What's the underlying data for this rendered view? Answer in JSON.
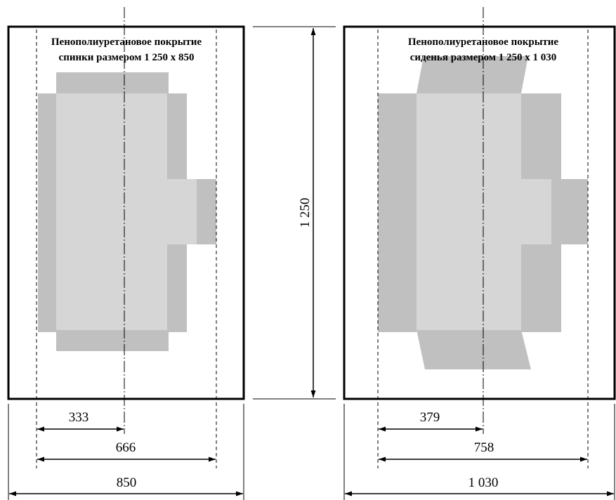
{
  "panels": [
    {
      "id": "back",
      "title_line1": "Пенополиуретановое покрытие",
      "title_line2": "спинки размером 1 250 х 850"
    },
    {
      "id": "seat",
      "title_line1": "Пенополиуретановое покрытие",
      "title_line2": "сиденья размером 1 250 х 1 030"
    }
  ],
  "dimensions": {
    "height": "1 250",
    "back_half": "333",
    "back_inner": "666",
    "back_total": "850",
    "seat_half": "379",
    "seat_inner": "758",
    "seat_total": "1 030"
  },
  "colors": {
    "outline": "#000000",
    "foam_dark": "#c0c0c0",
    "foam_light": "#d6d6d6",
    "background": "#ffffff"
  }
}
